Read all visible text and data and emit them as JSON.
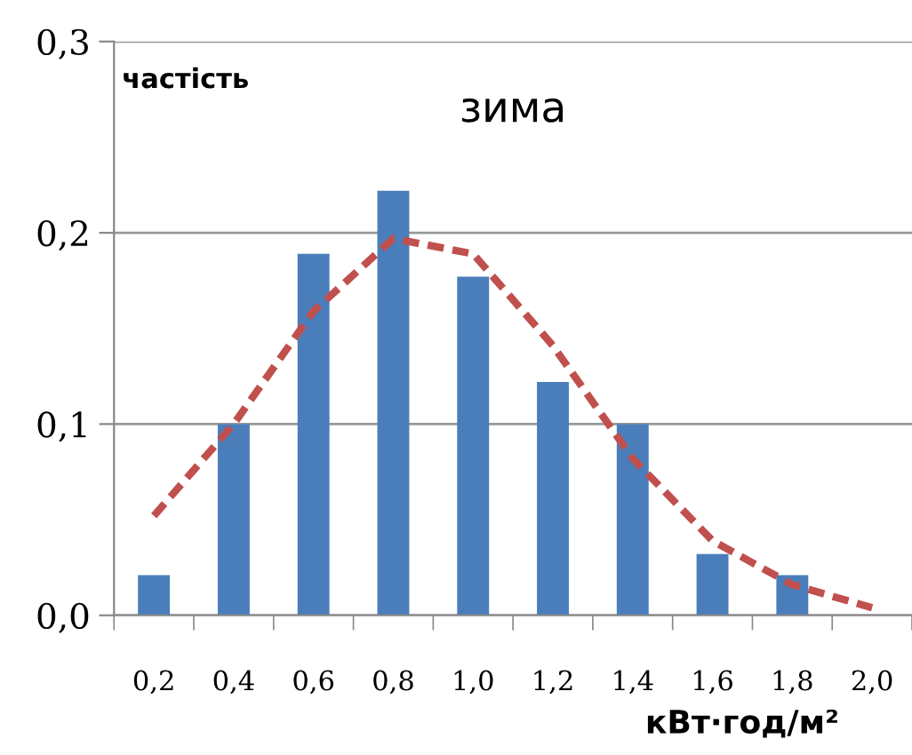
{
  "chart_data": {
    "type": "bar",
    "title": "зима",
    "ylabel": "частість",
    "xlabel": "кВт·год/м²",
    "categories": [
      "0,2",
      "0,4",
      "0,6",
      "0,8",
      "1,0",
      "1,2",
      "1,4",
      "1,6",
      "1,8",
      "2,0"
    ],
    "series": [
      {
        "color": "#4a7ebb",
        "values": [
          0.021,
          0.1,
          0.189,
          0.222,
          0.177,
          0.122,
          0.1,
          0.032,
          0.021,
          0
        ]
      },
      {
        "type": "line",
        "color": "#c0504d",
        "line_style": "dashed",
        "values": [
          0.052,
          0.1,
          0.159,
          0.197,
          0.189,
          0.141,
          0.082,
          0.039,
          0.016,
          0.004
        ]
      }
    ],
    "ylim": [
      0,
      0.3
    ],
    "yticks": [
      {
        "value": 0,
        "label": "0,0"
      },
      {
        "value": 0.1,
        "label": "0,1"
      },
      {
        "value": 0.2,
        "label": "0,2"
      },
      {
        "value": 0.3,
        "label": "0,3"
      }
    ],
    "grid": "y",
    "legend": false
  }
}
